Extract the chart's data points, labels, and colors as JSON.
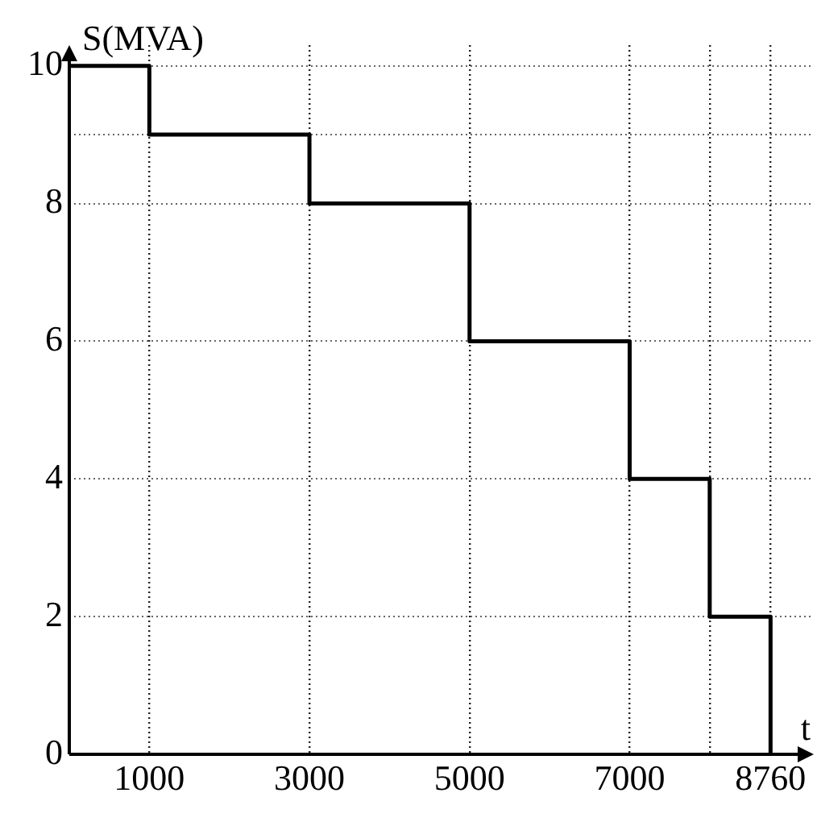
{
  "chart_data": {
    "type": "step",
    "xlabel": "t",
    "ylabel": "S(MVA)",
    "x": [
      0,
      1000,
      3000,
      5000,
      7000,
      8000,
      8760
    ],
    "series": [
      {
        "color": "#000000",
        "values": [
          10,
          9,
          8,
          6,
          4,
          2,
          0
        ]
      }
    ],
    "xlim": [
      0,
      9300
    ],
    "ylim": [
      0,
      10.3
    ],
    "xticks": [
      1000,
      3000,
      5000,
      7000,
      {
        "value": 8000,
        "label": null
      },
      8760
    ],
    "yticks": [
      0,
      2,
      4,
      6,
      8,
      {
        "value": 9,
        "label": null
      },
      10
    ],
    "grid": true,
    "legend": false,
    "marker": "none",
    "line_style": "solid"
  }
}
